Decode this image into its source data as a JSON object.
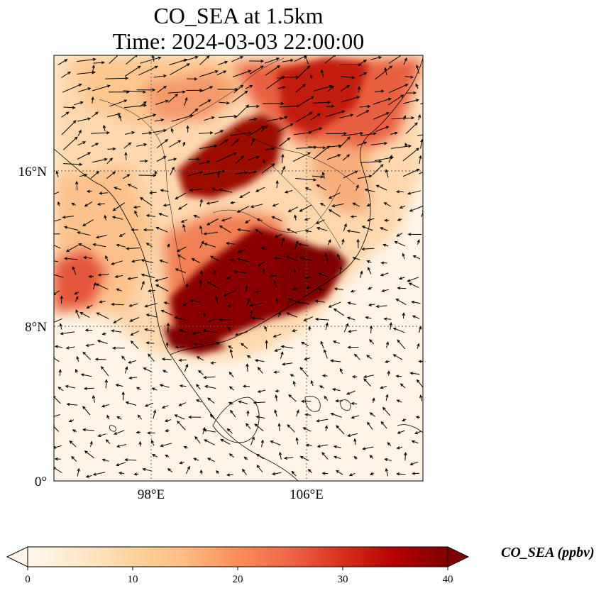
{
  "title": {
    "line1": "CO_SEA at 1.5km",
    "line2": "Time: 2024-03-03 22:00:00"
  },
  "map": {
    "variable": "CO_SEA",
    "height": "1.5km",
    "time": "2024-03-03 22:00:00",
    "extent": {
      "lon_min": 93,
      "lon_max": 112,
      "lat_min": 0,
      "lat_max": 22
    },
    "lat_ticks": [
      {
        "value": 16,
        "label": "16°N"
      },
      {
        "value": 8,
        "label": "8°N"
      },
      {
        "value": 0,
        "label": "0°"
      }
    ],
    "lon_ticks": [
      {
        "value": 98,
        "label": "98°E"
      },
      {
        "value": 106,
        "label": "106°E"
      }
    ],
    "gridlines": "dotted",
    "wind_vectors": true,
    "coastlines": true,
    "borders": true
  },
  "colorbar": {
    "label": "CO_SEA (ppbv)",
    "colormap": "OrRd",
    "min": 0,
    "max": 40,
    "extend": "both",
    "ticks": [
      "0",
      "10",
      "20",
      "30",
      "40"
    ],
    "colors": [
      "#fff7ec",
      "#fee8c8",
      "#fdd49e",
      "#fdbb84",
      "#fc8d59",
      "#ef6548",
      "#d7301f",
      "#b30000",
      "#7f0000"
    ]
  },
  "features": [
    {
      "name": "central-thailand-plume",
      "lon": 102.5,
      "lat": 10.0,
      "value": 40
    },
    {
      "name": "cambodia-plume",
      "lon": 104.5,
      "lat": 11.5,
      "value": 40
    },
    {
      "name": "laos-plume",
      "lon": 101.0,
      "lat": 16.3,
      "value": 40
    },
    {
      "name": "northern-band",
      "lon": 104.0,
      "lat": 20.0,
      "value": 34
    },
    {
      "name": "myanmar-west",
      "lon": 94.0,
      "lat": 11.0,
      "value": 30
    }
  ]
}
